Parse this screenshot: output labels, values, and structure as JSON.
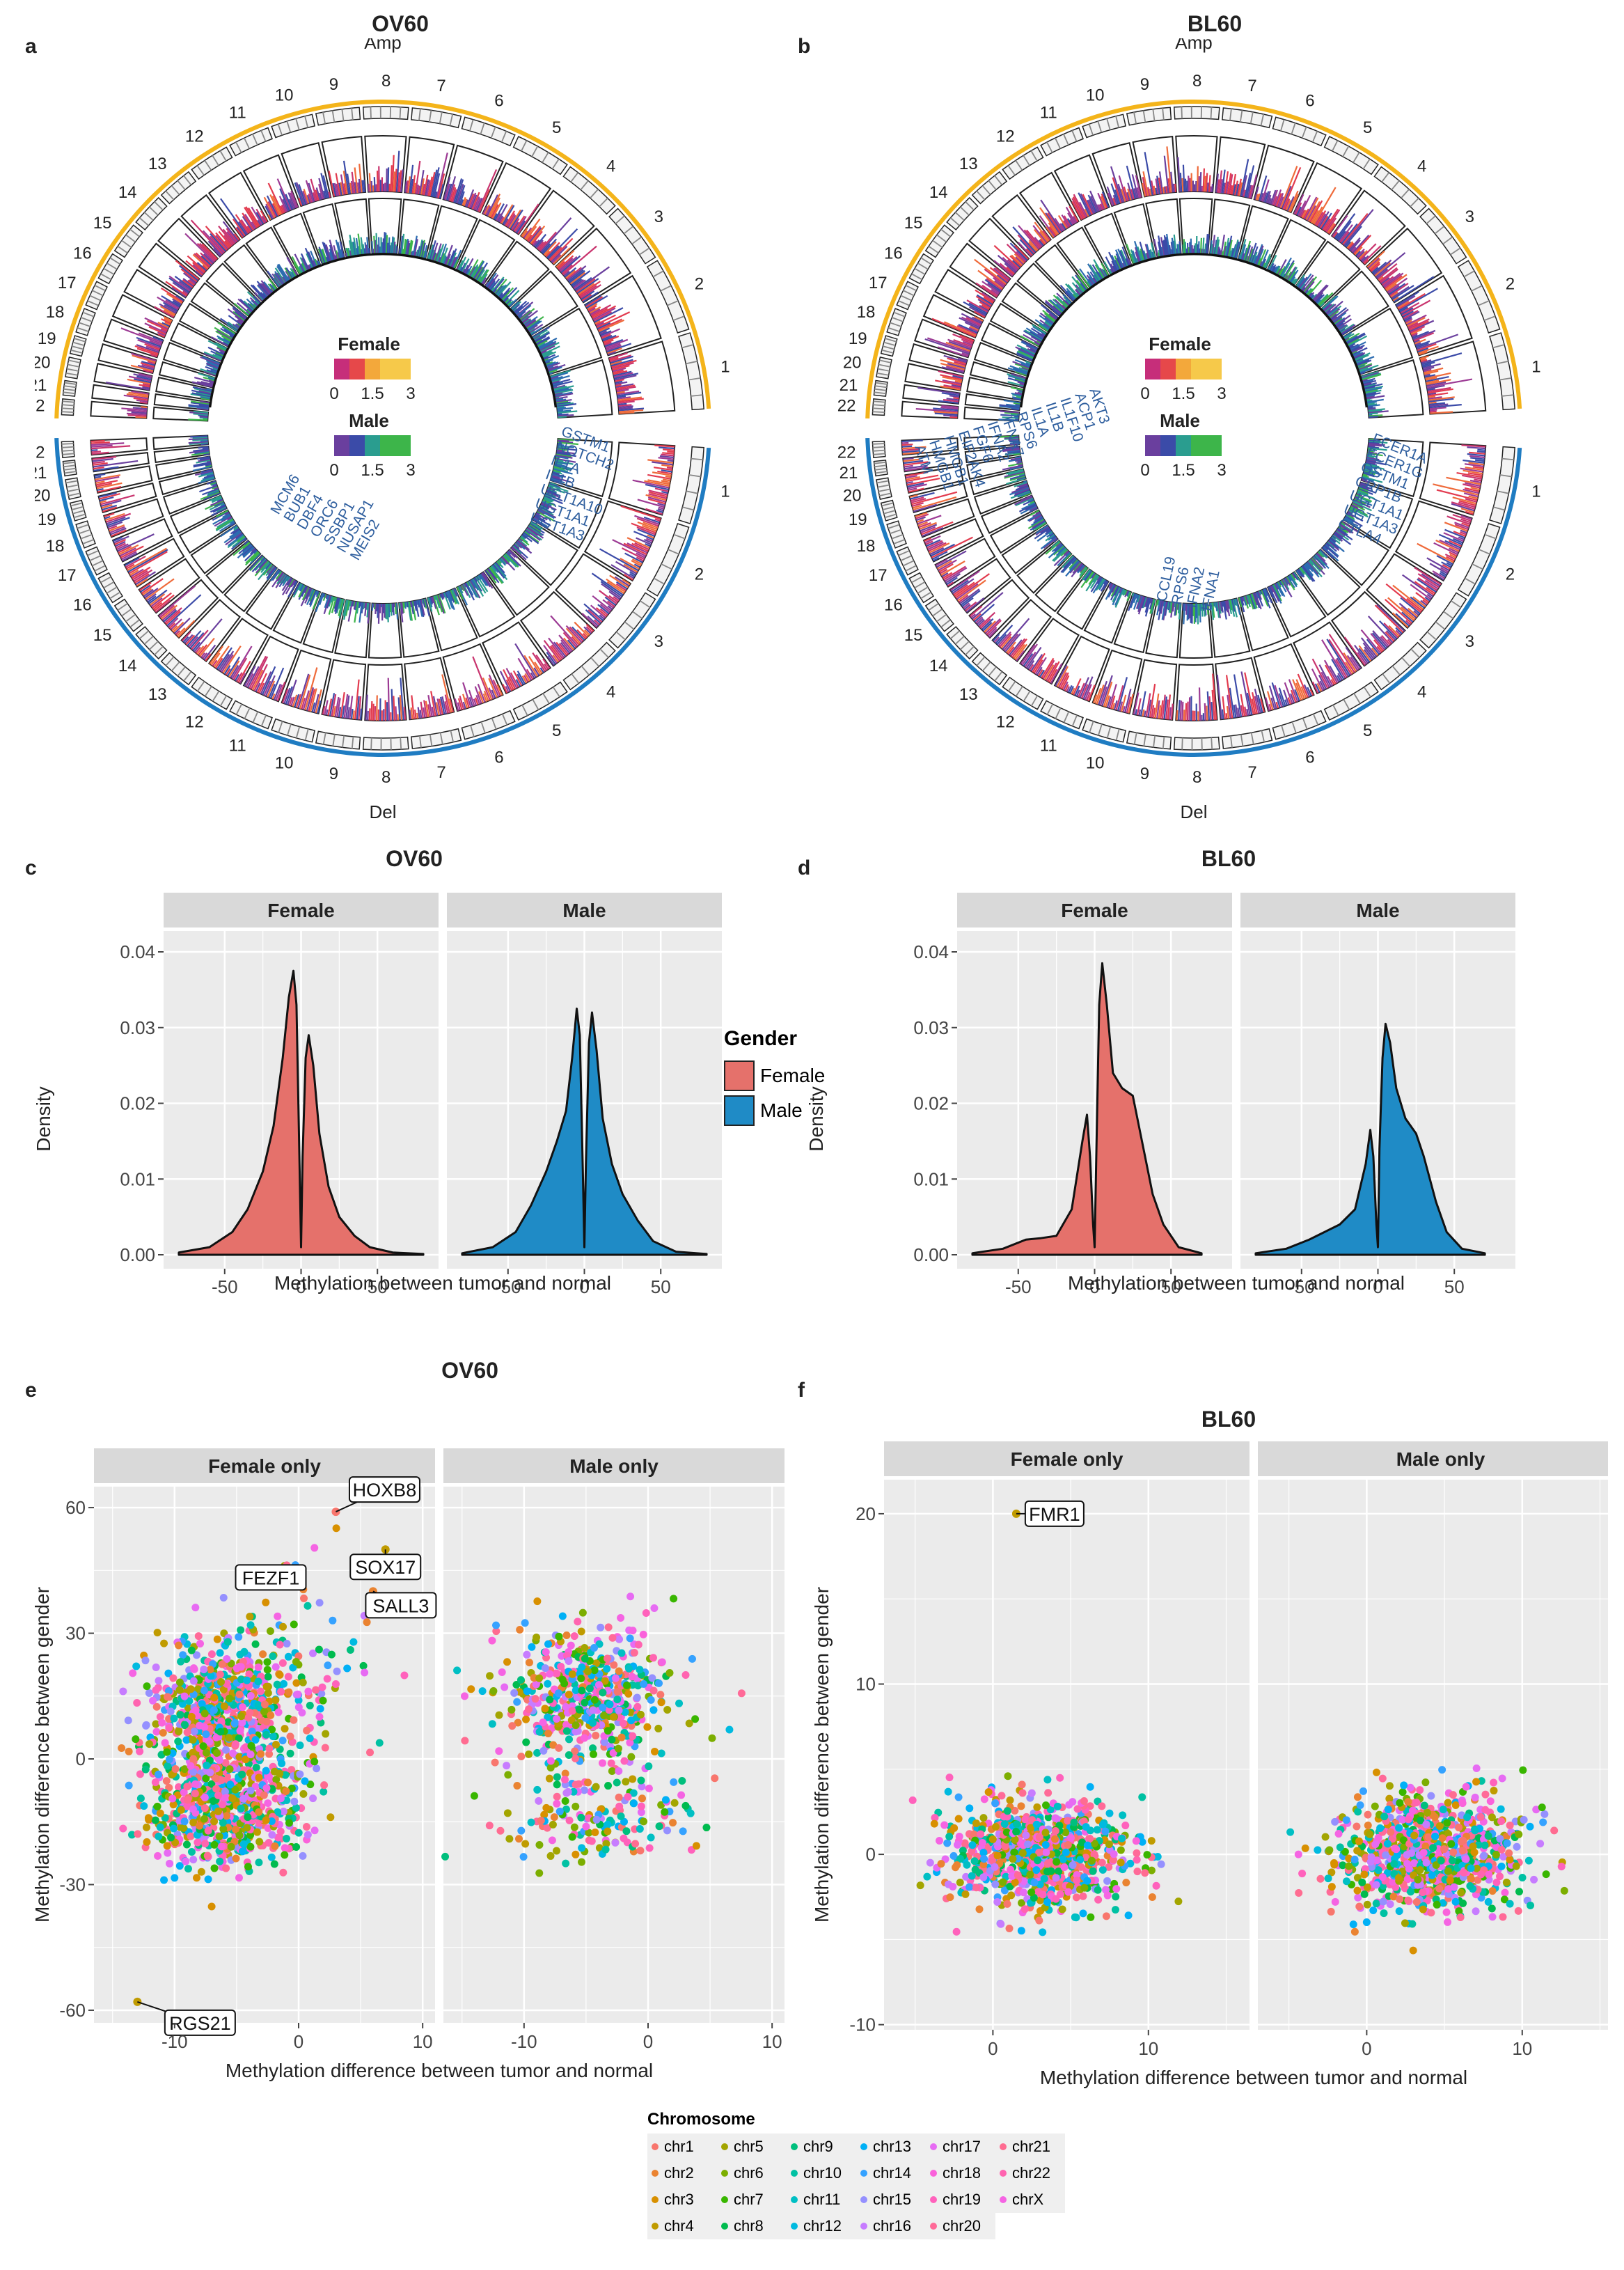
{
  "panels": {
    "a": {
      "label": "a",
      "title": "OV60",
      "amp": "Amp",
      "del": "Del",
      "female": "Female",
      "male": "Male",
      "scale": [
        "0",
        "1.5",
        "3"
      ],
      "genes_right": [
        "GSTM1",
        "NOTCH2",
        "IL1A",
        "IL1B",
        "UGT1A10",
        "UGT1A1",
        "UGT1A3"
      ],
      "genes_left": [
        "MCM6",
        "BUB1",
        "DBF4",
        "ORC6",
        "SSBP1",
        "NUSAP1",
        "MEIS2"
      ]
    },
    "b": {
      "label": "b",
      "title": "BL60",
      "amp": "Amp",
      "del": "Del",
      "female": "Female",
      "male": "Male",
      "scale": [
        "0",
        "1.5",
        "3"
      ],
      "genes_left": [
        "AKT3",
        "ACP1",
        "IL1F10",
        "IL1B",
        "IL1A",
        "RPS6",
        "IFNA7",
        "IFNA2",
        "FGF6",
        "EIF2AK4",
        "HMGB1",
        "HMGB1",
        "ATM"
      ],
      "genes_right": [
        "FCER1A",
        "FCER1G",
        "GSTM1",
        "CRP1B",
        "UGT1A1",
        "UGT1A3",
        "CTLA4"
      ],
      "genes_bottom": [
        "CCL19",
        "RPS6",
        "IFNA2",
        "IFNA1"
      ]
    },
    "c": {
      "label": "c",
      "title": "OV60"
    },
    "d": {
      "label": "d",
      "title": "BL60"
    },
    "e": {
      "label": "e",
      "title": "OV60"
    },
    "f": {
      "label": "f",
      "title": "BL60"
    }
  },
  "chromosome_ring": [
    "1",
    "2",
    "3",
    "4",
    "5",
    "6",
    "7",
    "8",
    "9",
    "10",
    "11",
    "12",
    "13",
    "14",
    "15",
    "16",
    "17",
    "18",
    "19",
    "20",
    "21",
    "22"
  ],
  "gender_legend": {
    "title": "Gender",
    "items": [
      {
        "label": "Female",
        "color": "#E5716B"
      },
      {
        "label": "Male",
        "color": "#1F8BC6"
      }
    ]
  },
  "chromosome_legend": {
    "title": "Chromosome",
    "items": [
      {
        "label": "chr1",
        "color": "#F8766D"
      },
      {
        "label": "chr2",
        "color": "#EA8331"
      },
      {
        "label": "chr3",
        "color": "#D89000"
      },
      {
        "label": "chr4",
        "color": "#C09B00"
      },
      {
        "label": "chr5",
        "color": "#A3A500"
      },
      {
        "label": "chr6",
        "color": "#7CAE00"
      },
      {
        "label": "chr7",
        "color": "#39B600"
      },
      {
        "label": "chr8",
        "color": "#00BB4E"
      },
      {
        "label": "chr9",
        "color": "#00BF7D"
      },
      {
        "label": "chr10",
        "color": "#00C1A3"
      },
      {
        "label": "chr11",
        "color": "#00BFC4"
      },
      {
        "label": "chr12",
        "color": "#00BAE0"
      },
      {
        "label": "chr13",
        "color": "#00B0F6"
      },
      {
        "label": "chr14",
        "color": "#35A2FF"
      },
      {
        "label": "chr15",
        "color": "#9590FF"
      },
      {
        "label": "chr16",
        "color": "#C77CFF"
      },
      {
        "label": "chr17",
        "color": "#E76BF3"
      },
      {
        "label": "chr18",
        "color": "#FA62DB"
      },
      {
        "label": "chr19",
        "color": "#FF62BC"
      },
      {
        "label": "chr20",
        "color": "#FF6A98"
      },
      {
        "label": "chr21",
        "color": "#FF6C91"
      },
      {
        "label": "chr22",
        "color": "#FF64B0"
      },
      {
        "label": "chrX",
        "color": "#F564E3"
      }
    ]
  },
  "chart_data": [
    {
      "id": "c",
      "type": "area",
      "title": "OV60",
      "facets": [
        "Female",
        "Male"
      ],
      "xlabel": "Methylation between tumor and normal",
      "ylabel": "Density",
      "xlim": [
        -90,
        90
      ],
      "ylim": [
        0,
        0.04
      ],
      "xticks": [
        -50,
        0,
        50
      ],
      "yticks": [
        0.0,
        0.01,
        0.02,
        0.03,
        0.04
      ],
      "ytick_labels": [
        "0.00",
        "0.01",
        "0.02",
        "0.03",
        "0.04"
      ],
      "series": [
        {
          "name": "Female",
          "color": "#E5716B",
          "x": [
            -80,
            -60,
            -45,
            -35,
            -25,
            -18,
            -12,
            -8,
            -5,
            -3,
            -1,
            0,
            1,
            3,
            5,
            8,
            12,
            18,
            25,
            35,
            45,
            60,
            80
          ],
          "y": [
            0.0003,
            0.001,
            0.003,
            0.006,
            0.011,
            0.017,
            0.026,
            0.034,
            0.0375,
            0.033,
            0.012,
            0.001,
            0.013,
            0.026,
            0.029,
            0.025,
            0.016,
            0.009,
            0.005,
            0.0025,
            0.001,
            0.0003,
            0.0001
          ]
        },
        {
          "name": "Male",
          "color": "#1F8BC6",
          "x": [
            -80,
            -60,
            -45,
            -35,
            -25,
            -18,
            -12,
            -8,
            -5,
            -3,
            -1,
            0,
            1,
            3,
            5,
            8,
            12,
            18,
            25,
            35,
            45,
            60,
            80
          ],
          "y": [
            0.0002,
            0.001,
            0.003,
            0.0065,
            0.011,
            0.015,
            0.019,
            0.026,
            0.0325,
            0.029,
            0.011,
            0.001,
            0.012,
            0.028,
            0.032,
            0.027,
            0.018,
            0.012,
            0.008,
            0.0045,
            0.0018,
            0.0004,
            0.0001
          ]
        }
      ]
    },
    {
      "id": "d",
      "type": "area",
      "title": "BL60",
      "facets": [
        "Female",
        "Male"
      ],
      "xlabel": "Methylation between tumor and normal",
      "ylabel": "Density",
      "xlim": [
        -90,
        90
      ],
      "ylim": [
        0,
        0.04
      ],
      "xticks": [
        -50,
        0,
        50
      ],
      "yticks": [
        0.0,
        0.01,
        0.02,
        0.03,
        0.04
      ],
      "ytick_labels": [
        "0.00",
        "0.01",
        "0.02",
        "0.03",
        "0.04"
      ],
      "series": [
        {
          "name": "Female",
          "color": "#E5716B",
          "x": [
            -80,
            -60,
            -45,
            -35,
            -25,
            -15,
            -8,
            -5,
            -3,
            -1,
            0,
            1,
            3,
            5,
            8,
            12,
            18,
            25,
            30,
            38,
            45,
            55,
            70
          ],
          "y": [
            0.0002,
            0.0008,
            0.002,
            0.0022,
            0.0025,
            0.006,
            0.015,
            0.0185,
            0.013,
            0.004,
            0.001,
            0.012,
            0.033,
            0.0385,
            0.033,
            0.024,
            0.022,
            0.021,
            0.016,
            0.008,
            0.004,
            0.001,
            0.0002
          ]
        },
        {
          "name": "Male",
          "color": "#1F8BC6",
          "x": [
            -80,
            -60,
            -45,
            -35,
            -25,
            -15,
            -8,
            -5,
            -3,
            -1,
            0,
            1,
            3,
            5,
            8,
            12,
            18,
            25,
            30,
            38,
            45,
            55,
            70
          ],
          "y": [
            0.0002,
            0.0008,
            0.002,
            0.003,
            0.004,
            0.006,
            0.012,
            0.0165,
            0.013,
            0.004,
            0.001,
            0.014,
            0.026,
            0.0305,
            0.028,
            0.022,
            0.018,
            0.016,
            0.013,
            0.007,
            0.003,
            0.0008,
            0.0002
          ]
        }
      ]
    },
    {
      "id": "e",
      "type": "scatter",
      "title": "OV60",
      "facets": [
        "Female only",
        "Male only"
      ],
      "xlabel": "Methylation difference between tumor and normal",
      "ylabel": "Methylation difference between gender",
      "xlim": [
        -16.5,
        11
      ],
      "ylim": [
        -63,
        65
      ],
      "xticks": [
        -10,
        0,
        10
      ],
      "yticks": [
        -60,
        -30,
        0,
        30,
        60
      ],
      "annotations": [
        {
          "facet": "Female only",
          "label": "HOXB8",
          "x": 3,
          "y": 59
        },
        {
          "facet": "Female only",
          "label": "FEZF1",
          "x": 0,
          "y": 45
        },
        {
          "facet": "Female only",
          "label": "SOX17",
          "x": 7,
          "y": 50
        },
        {
          "facet": "Female only",
          "label": "SALL3",
          "x": 6,
          "y": 40
        },
        {
          "facet": "Female only",
          "label": "RGS21",
          "x": -13,
          "y": -58
        }
      ],
      "clusters": [
        {
          "facet": "Female only",
          "n": 650,
          "cx": -6,
          "cy": 12,
          "sx": 3,
          "sy": 8
        },
        {
          "facet": "Female only",
          "n": 650,
          "cx": -6,
          "cy": -12,
          "sx": 3,
          "sy": 7
        },
        {
          "facet": "Female only",
          "n": 60,
          "cx": 0,
          "cy": 25,
          "sx": 3,
          "sy": 12
        },
        {
          "facet": "Male only",
          "n": 500,
          "cx": -5,
          "cy": 15,
          "sx": 3.5,
          "sy": 8
        },
        {
          "facet": "Male only",
          "n": 170,
          "cx": -4,
          "cy": -13,
          "sx": 4,
          "sy": 6
        }
      ]
    },
    {
      "id": "f",
      "type": "scatter",
      "title": "BL60",
      "facets": [
        "Female only",
        "Male only"
      ],
      "xlabel": "Methylation difference between tumor and normal",
      "ylabel": "Methylation difference between gender",
      "xlim": [
        -7,
        16.5
      ],
      "ylim": [
        -10.3,
        22
      ],
      "xticks": [
        0,
        10
      ],
      "yticks": [
        -10,
        0,
        10,
        20
      ],
      "annotations": [
        {
          "facet": "Female only",
          "label": "FMR1",
          "x": 1.5,
          "y": 20
        }
      ],
      "clusters": [
        {
          "facet": "Female only",
          "n": 900,
          "cx": 3,
          "cy": 0,
          "sx": 2.8,
          "sy": 1.6
        },
        {
          "facet": "Male only",
          "n": 900,
          "cx": 4,
          "cy": 0,
          "sx": 3,
          "sy": 1.7
        }
      ]
    }
  ]
}
